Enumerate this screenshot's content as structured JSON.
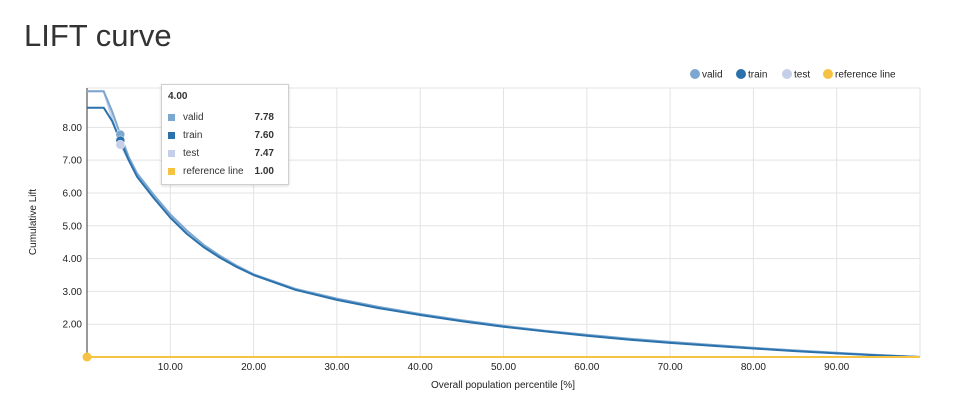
{
  "page": {
    "title": "LIFT curve"
  },
  "colors": {
    "valid": "#7ca7d0",
    "train": "#2b72ad",
    "test": "#c6cfe9",
    "reference": "#f5c242",
    "grid": "#e3e3e3",
    "axis": "#333333"
  },
  "chart_data": {
    "type": "line",
    "title": "LIFT curve",
    "xlabel": "Overall population percentile [%]",
    "ylabel": "Cumulative Lift",
    "xlim": [
      0,
      100
    ],
    "ylim": [
      1,
      9.2
    ],
    "grid": true,
    "legend_position": "top-right",
    "x_ticks": [
      "10.00",
      "20.00",
      "30.00",
      "40.00",
      "50.00",
      "60.00",
      "70.00",
      "80.00",
      "90.00"
    ],
    "y_ticks": [
      "2.00",
      "3.00",
      "4.00",
      "5.00",
      "6.00",
      "7.00",
      "8.00"
    ],
    "series": [
      {
        "name": "valid",
        "x": [
          0,
          1,
          2,
          3,
          4,
          5,
          6,
          8,
          10,
          12,
          14,
          16,
          18,
          20,
          25,
          30,
          35,
          40,
          45,
          50,
          55,
          60,
          65,
          70,
          75,
          80,
          85,
          90,
          95,
          100
        ],
        "y": [
          9.1,
          9.1,
          9.1,
          8.5,
          7.78,
          7.1,
          6.6,
          5.95,
          5.35,
          4.85,
          4.42,
          4.08,
          3.78,
          3.52,
          3.08,
          2.78,
          2.53,
          2.31,
          2.12,
          1.95,
          1.8,
          1.68,
          1.56,
          1.46,
          1.37,
          1.28,
          1.2,
          1.13,
          1.06,
          1.0
        ]
      },
      {
        "name": "train",
        "x": [
          0,
          1,
          2,
          3,
          4,
          5,
          6,
          8,
          10,
          12,
          14,
          16,
          18,
          20,
          25,
          30,
          35,
          40,
          45,
          50,
          55,
          60,
          65,
          70,
          75,
          80,
          85,
          90,
          95,
          100
        ],
        "y": [
          8.6,
          8.6,
          8.6,
          8.2,
          7.6,
          7.0,
          6.5,
          5.85,
          5.25,
          4.75,
          4.35,
          4.02,
          3.74,
          3.5,
          3.05,
          2.74,
          2.49,
          2.28,
          2.09,
          1.92,
          1.78,
          1.65,
          1.53,
          1.43,
          1.34,
          1.26,
          1.18,
          1.11,
          1.05,
          1.0
        ]
      },
      {
        "name": "test",
        "x": [
          0,
          1,
          2,
          3,
          4,
          5,
          6,
          8,
          10,
          12,
          14,
          16,
          18,
          20,
          25,
          30,
          35,
          40,
          45,
          50,
          55,
          60,
          65,
          70,
          75,
          80,
          85,
          90,
          95,
          100
        ],
        "y": [
          9.1,
          9.1,
          9.1,
          8.3,
          7.47,
          7.0,
          6.55,
          5.9,
          5.3,
          4.8,
          4.4,
          4.05,
          3.76,
          3.5,
          3.06,
          2.76,
          2.51,
          2.3,
          2.11,
          1.94,
          1.79,
          1.67,
          1.55,
          1.45,
          1.36,
          1.27,
          1.19,
          1.12,
          1.05,
          1.0
        ]
      },
      {
        "name": "reference line",
        "x": [
          0,
          100
        ],
        "y": [
          1.0,
          1.0
        ]
      }
    ],
    "tooltip": {
      "header": "4.00",
      "rows": [
        {
          "name": "valid",
          "value": "7.78"
        },
        {
          "name": "train",
          "value": "7.60"
        },
        {
          "name": "test",
          "value": "7.47"
        },
        {
          "name": "reference line",
          "value": "1.00"
        }
      ]
    }
  }
}
